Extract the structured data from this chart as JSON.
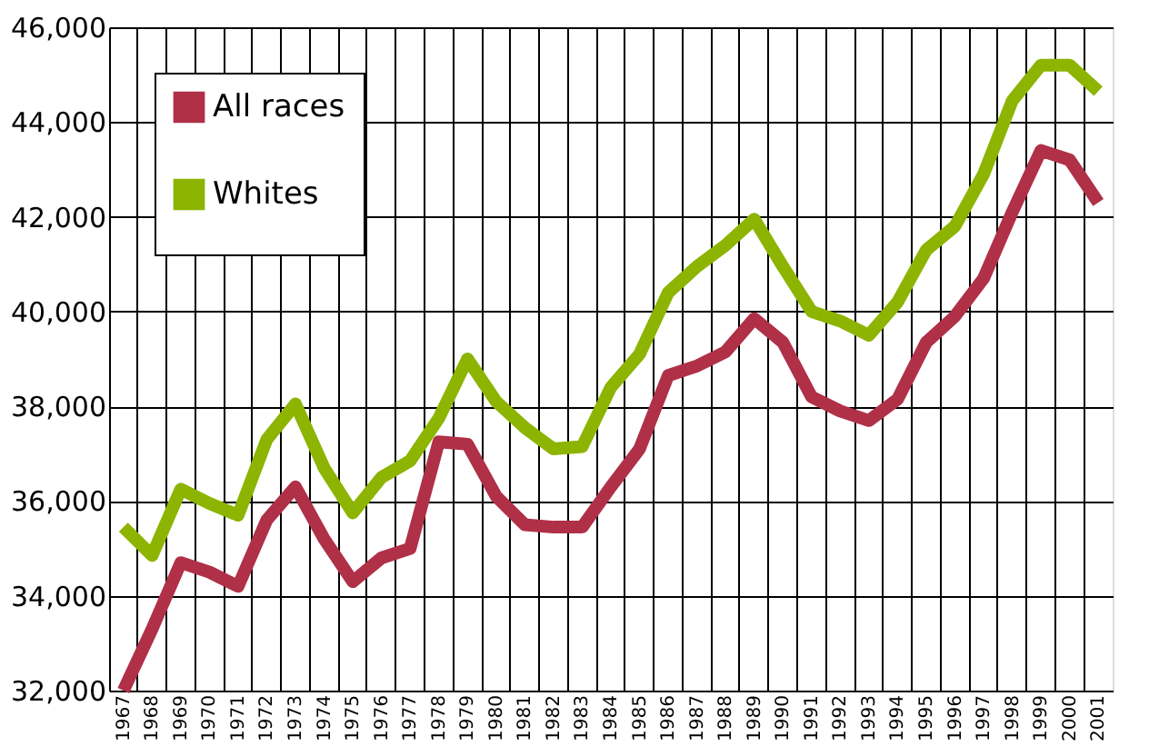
{
  "chart_data": {
    "type": "line",
    "categories": [
      "1967",
      "1968",
      "1969",
      "1970",
      "1971",
      "1972",
      "1973",
      "1974",
      "1975",
      "1976",
      "1977",
      "1978",
      "1979",
      "1980",
      "1981",
      "1982",
      "1983",
      "1984",
      "1985",
      "1986",
      "1987",
      "1988",
      "1989",
      "1990",
      "1991",
      "1992",
      "1993",
      "1994",
      "1995",
      "1996",
      "1997",
      "1998",
      "1999",
      "2000",
      "2001"
    ],
    "series": [
      {
        "name": "All races",
        "color": "#b03048",
        "values": [
          32000,
          33300,
          34700,
          34500,
          34200,
          35600,
          36300,
          35200,
          34300,
          34800,
          35000,
          37250,
          37200,
          36100,
          35500,
          35450,
          35450,
          36300,
          37100,
          38650,
          38850,
          39150,
          39850,
          39350,
          38200,
          37900,
          37700,
          38150,
          39350,
          39900,
          40700,
          42100,
          43400,
          43200,
          42300
        ]
      },
      {
        "name": "Whites",
        "color": "#8cb400",
        "values": [
          35450,
          34850,
          36250,
          35950,
          35700,
          37300,
          38050,
          36700,
          35750,
          36500,
          36850,
          37750,
          39000,
          38100,
          37550,
          37100,
          37150,
          38400,
          39100,
          40400,
          40950,
          41400,
          41950,
          40950,
          40000,
          39800,
          39500,
          40200,
          41300,
          41800,
          42900,
          44450,
          45200,
          45200,
          44650
        ]
      }
    ],
    "ylim": [
      32000,
      46000
    ],
    "yticks": [
      {
        "value": 32000,
        "label": "32,000"
      },
      {
        "value": 34000,
        "label": "34,000"
      },
      {
        "value": 36000,
        "label": "36,000"
      },
      {
        "value": 38000,
        "label": "38,000"
      },
      {
        "value": 40000,
        "label": "40,000"
      },
      {
        "value": 42000,
        "label": "42,000"
      },
      {
        "value": 44000,
        "label": "44,000"
      },
      {
        "value": 46000,
        "label": "46,000"
      }
    ],
    "grid": true,
    "legend": "top left",
    "marker": "none",
    "line_style": "solid"
  }
}
